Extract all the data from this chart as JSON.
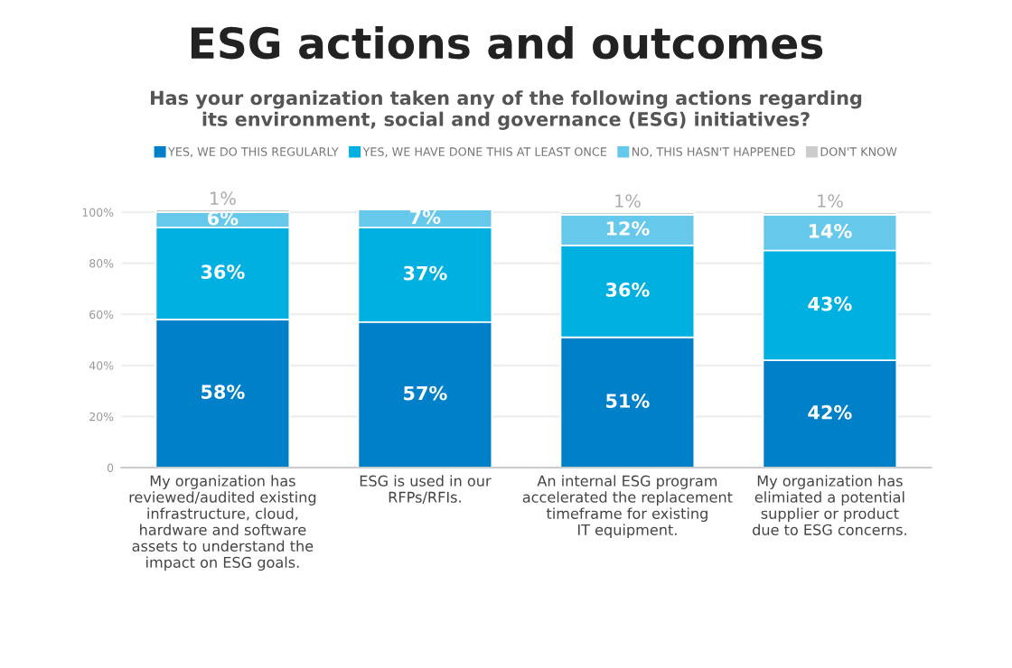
{
  "chart_data": {
    "type": "bar",
    "stacked": true,
    "title": "ESG actions and outcomes",
    "subtitle": "Has your organization taken any of the following actions regarding\nits environment, social and governance (ESG) initiatives?",
    "categories": [
      "My organization has\nreviewed/audited existing\ninfrastructure, cloud,\nhardware and software\nassets to understand the\nimpact on ESG goals.",
      "ESG is used in our\nRFPs/RFIs.",
      "An internal ESG program\naccelerated the replacement\ntimeframe for existing\nIT equipment.",
      "My organization has\nelimiated a potential\nsupplier or product\ndue to ESG concerns."
    ],
    "series": [
      {
        "name": "YES, WE DO THIS REGULARLY",
        "color": "#0080c8",
        "values": [
          58,
          57,
          51,
          42
        ],
        "value_labels": [
          "58%",
          "57%",
          "51%",
          "42%"
        ]
      },
      {
        "name": "YES, WE HAVE DONE THIS AT LEAST ONCE",
        "color": "#00b0e0",
        "values": [
          36,
          37,
          36,
          43
        ],
        "value_labels": [
          "36%",
          "37%",
          "36%",
          "43%"
        ]
      },
      {
        "name": "NO, THIS HASN'T HAPPENED",
        "color": "#66c8ea",
        "values": [
          6,
          7,
          12,
          14
        ],
        "value_labels": [
          "6%",
          "7%",
          "12%",
          "14%"
        ]
      },
      {
        "name": "DON'T KNOW",
        "color": "#cccccc",
        "values": [
          1,
          null,
          1,
          1
        ],
        "value_labels": [
          "1%",
          null,
          "1%",
          "1%"
        ]
      }
    ],
    "ylim": [
      0,
      102
    ],
    "yticks": [
      {
        "value": 0,
        "label": "0"
      },
      {
        "value": 20,
        "label": "20%"
      },
      {
        "value": 40,
        "label": "40%"
      },
      {
        "value": 60,
        "label": "60%"
      },
      {
        "value": 80,
        "label": "80%"
      },
      {
        "value": 100,
        "label": "100%"
      }
    ],
    "grid": "y",
    "legend": "top"
  }
}
